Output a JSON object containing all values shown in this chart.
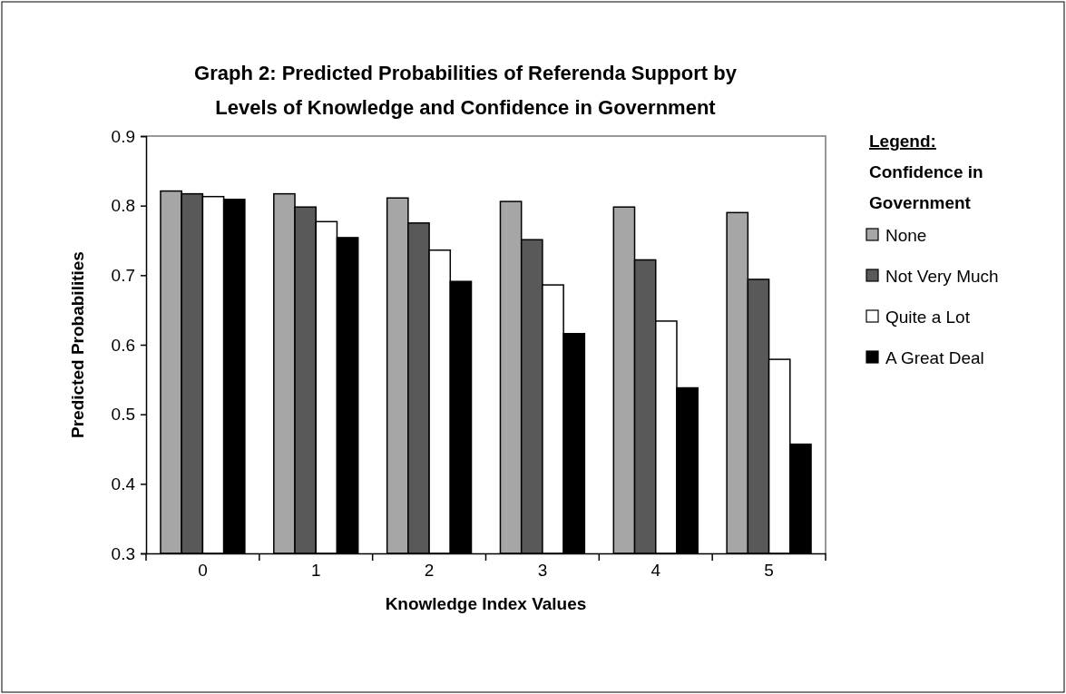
{
  "chart_data": {
    "type": "bar",
    "title": "Graph 2: Predicted Probabilities of Referenda Support by\nLevels of Knowledge and Confidence in Government",
    "xlabel": "Knowledge Index Values",
    "ylabel": "Predicted Probabilities",
    "legend_title": "Legend:\nConfidence in\nGovernment",
    "categories": [
      "0",
      "1",
      "2",
      "3",
      "4",
      "5"
    ],
    "series": [
      {
        "name": "None",
        "color": "#a6a6a6",
        "values": [
          0.821,
          0.817,
          0.811,
          0.806,
          0.798,
          0.79
        ]
      },
      {
        "name": "Not Very Much",
        "color": "#595959",
        "values": [
          0.817,
          0.798,
          0.775,
          0.751,
          0.722,
          0.694
        ]
      },
      {
        "name": "Quite a Lot",
        "color": "#ffffff",
        "values": [
          0.813,
          0.777,
          0.736,
          0.686,
          0.634,
          0.579
        ]
      },
      {
        "name": "A Great Deal",
        "color": "#000000",
        "values": [
          0.809,
          0.754,
          0.691,
          0.616,
          0.538,
          0.457
        ]
      }
    ],
    "ylim": [
      0.3,
      0.9
    ],
    "yticks": [
      0.3,
      0.4,
      0.5,
      0.6,
      0.7,
      0.8,
      0.9
    ],
    "legend": "right",
    "grid": false
  }
}
